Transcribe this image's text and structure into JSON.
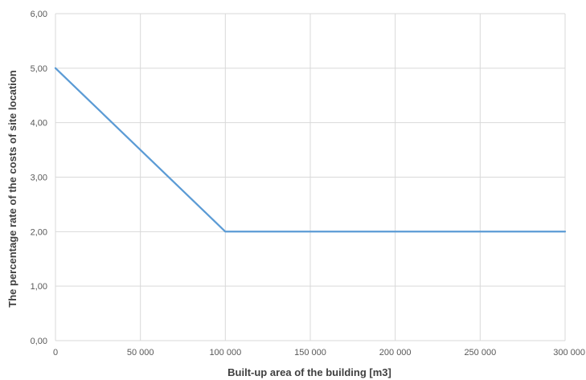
{
  "chart_data": {
    "type": "line",
    "title": "",
    "xlabel": "Built-up area of the building [m3]",
    "ylabel": "The percentage rate of the costs of site location",
    "xlim": [
      0,
      300000
    ],
    "ylim": [
      0,
      6
    ],
    "x_ticks": [
      "0",
      "50 000",
      "100 000",
      "150 000",
      "200 000",
      "250 000",
      "300 000"
    ],
    "y_ticks": [
      "0,00",
      "1,00",
      "2,00",
      "3,00",
      "4,00",
      "5,00",
      "6,00"
    ],
    "grid": true,
    "legend": "none",
    "series": [
      {
        "color": "#5b9bd5",
        "points": [
          [
            0,
            5.0
          ],
          [
            100000,
            2.0
          ],
          [
            200000,
            2.0
          ],
          [
            300000,
            2.0
          ]
        ]
      }
    ]
  }
}
